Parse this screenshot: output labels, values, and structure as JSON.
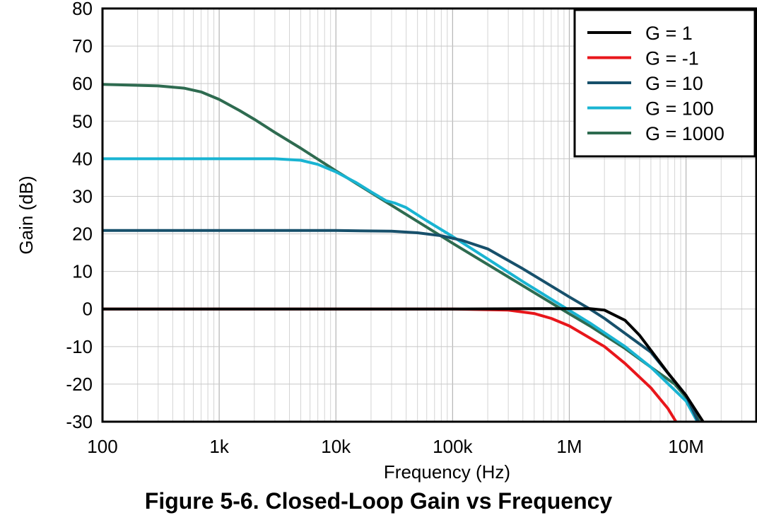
{
  "caption": "Figure 5-6. Closed-Loop Gain vs Frequency",
  "chart_data": {
    "type": "line",
    "title": "",
    "xlabel": "Frequency (Hz)",
    "ylabel": "Gain (dB)",
    "xscale": "log",
    "xlim": [
      100,
      40000000
    ],
    "ylim": [
      -30,
      80
    ],
    "x_ticks": [
      100,
      1000,
      10000,
      100000,
      1000000,
      10000000
    ],
    "x_tick_labels": [
      "100",
      "1k",
      "10k",
      "100k",
      "1M",
      "10M"
    ],
    "y_ticks": [
      -30,
      -20,
      -10,
      0,
      10,
      20,
      30,
      40,
      50,
      60,
      70,
      80
    ],
    "y_tick_labels": [
      "-30",
      "-20",
      "-10",
      "0",
      "10",
      "20",
      "30",
      "40",
      "50",
      "60",
      "70",
      "80"
    ],
    "grid": true,
    "legend_position": "top-right",
    "series": [
      {
        "name": "G = 1",
        "color": "#000000",
        "points": [
          [
            100,
            0
          ],
          [
            100000,
            0
          ],
          [
            700000,
            0.1
          ],
          [
            1500000,
            0.1
          ],
          [
            2000000,
            -0.3
          ],
          [
            3000000,
            -3
          ],
          [
            4000000,
            -7
          ],
          [
            5000000,
            -11
          ],
          [
            7000000,
            -17
          ],
          [
            10000000,
            -23
          ],
          [
            14000000,
            -30
          ]
        ]
      },
      {
        "name": "G = -1",
        "color": "#e8161b",
        "points": [
          [
            100,
            0
          ],
          [
            100000,
            0
          ],
          [
            300000,
            -0.3
          ],
          [
            500000,
            -1.2
          ],
          [
            700000,
            -2.5
          ],
          [
            1000000,
            -4.5
          ],
          [
            2000000,
            -10
          ],
          [
            3000000,
            -14.5
          ],
          [
            5000000,
            -21
          ],
          [
            7000000,
            -26.5
          ],
          [
            8200000,
            -30
          ]
        ]
      },
      {
        "name": "G = 10",
        "color": "#17506b",
        "points": [
          [
            100,
            20.9
          ],
          [
            10000,
            20.9
          ],
          [
            30000,
            20.7
          ],
          [
            50000,
            20.3
          ],
          [
            80000,
            19.5
          ],
          [
            120000,
            18.3
          ],
          [
            200000,
            16
          ],
          [
            400000,
            10.7
          ],
          [
            1000000,
            3.2
          ],
          [
            1500000,
            0
          ],
          [
            2000000,
            -2.5
          ],
          [
            5000000,
            -11.5
          ],
          [
            10000000,
            -23
          ],
          [
            12700000,
            -30
          ]
        ]
      },
      {
        "name": "G = 100",
        "color": "#19b4d2",
        "points": [
          [
            100,
            40
          ],
          [
            3000,
            40
          ],
          [
            5000,
            39.6
          ],
          [
            7000,
            38.5
          ],
          [
            10000,
            36.5
          ],
          [
            15000,
            33.6
          ],
          [
            20000,
            31.2
          ],
          [
            27000,
            28.8
          ],
          [
            32000,
            28.2
          ],
          [
            40000,
            27
          ],
          [
            60000,
            23.5
          ],
          [
            100000,
            19.3
          ],
          [
            200000,
            13.3
          ],
          [
            400000,
            7.3
          ],
          [
            800000,
            1.5
          ],
          [
            1500000,
            -3.7
          ],
          [
            3000000,
            -10
          ],
          [
            5000000,
            -15.5
          ],
          [
            10000000,
            -24.5
          ],
          [
            12500000,
            -30
          ]
        ]
      },
      {
        "name": "G = 1000",
        "color": "#2e6b50",
        "points": [
          [
            100,
            59.8
          ],
          [
            300,
            59.4
          ],
          [
            500,
            58.8
          ],
          [
            700,
            57.8
          ],
          [
            1000,
            55.8
          ],
          [
            1500,
            52.8
          ],
          [
            2000,
            50.5
          ],
          [
            3000,
            47
          ],
          [
            5000,
            42.8
          ],
          [
            10000,
            36.8
          ],
          [
            100000,
            17.5
          ],
          [
            1000000,
            -1.3
          ],
          [
            1500000,
            -4.5
          ],
          [
            3000000,
            -10.5
          ],
          [
            5000000,
            -15.5
          ],
          [
            8000000,
            -20
          ],
          [
            10000000,
            -23.5
          ],
          [
            13000000,
            -30
          ]
        ]
      }
    ]
  }
}
